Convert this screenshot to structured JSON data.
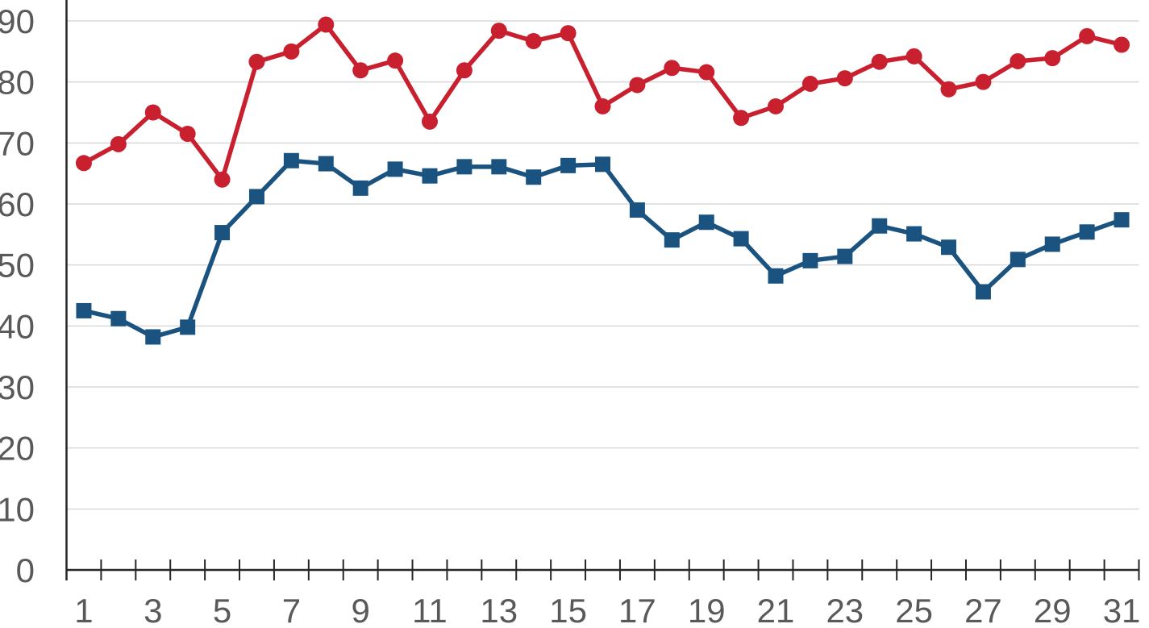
{
  "chart_data": {
    "type": "line",
    "title": "",
    "xlabel": "",
    "ylabel": "",
    "legend_position": "none",
    "grid": "horizontal",
    "background_color": "#FFFFFF",
    "gridline_color": "#D9D9D9",
    "axis_color": "#262626",
    "tick_label_color": "#595959",
    "ylim": [
      0,
      90
    ],
    "ytick_interval": 10,
    "y_tick_labels": [
      "0",
      "10",
      "20",
      "30",
      "40",
      "50",
      "60",
      "70",
      "80",
      "90"
    ],
    "x": [
      1,
      2,
      3,
      4,
      5,
      6,
      7,
      8,
      9,
      10,
      11,
      12,
      13,
      14,
      15,
      16,
      17,
      18,
      19,
      20,
      21,
      22,
      23,
      24,
      25,
      26,
      27,
      28,
      29,
      30,
      31
    ],
    "x_tick_labels": [
      "1",
      "3",
      "5",
      "7",
      "9",
      "11",
      "13",
      "15",
      "17",
      "19",
      "21",
      "23",
      "25",
      "27",
      "29",
      "31"
    ],
    "series": [
      {
        "name": "red-series",
        "marker": "circle",
        "color": "#C8202F",
        "values": [
          66.7,
          69.8,
          75.0,
          71.5,
          64.0,
          83.3,
          85.0,
          89.4,
          81.9,
          83.5,
          73.5,
          81.9,
          88.4,
          86.7,
          88.0,
          76.0,
          79.5,
          82.3,
          81.6,
          74.1,
          76.0,
          79.7,
          80.6,
          83.3,
          84.2,
          78.8,
          80.0,
          83.4,
          83.9,
          87.5,
          86.1
        ]
      },
      {
        "name": "blue-series",
        "marker": "square",
        "color": "#1A5280",
        "values": [
          42.5,
          41.2,
          38.2,
          39.8,
          55.3,
          61.2,
          67.1,
          66.6,
          62.6,
          65.7,
          64.6,
          66.1,
          66.1,
          64.4,
          66.3,
          66.5,
          59.0,
          54.1,
          57.0,
          54.3,
          48.2,
          50.7,
          51.4,
          56.4,
          55.1,
          52.9,
          45.6,
          50.9,
          53.4,
          55.4,
          57.4
        ]
      }
    ]
  }
}
